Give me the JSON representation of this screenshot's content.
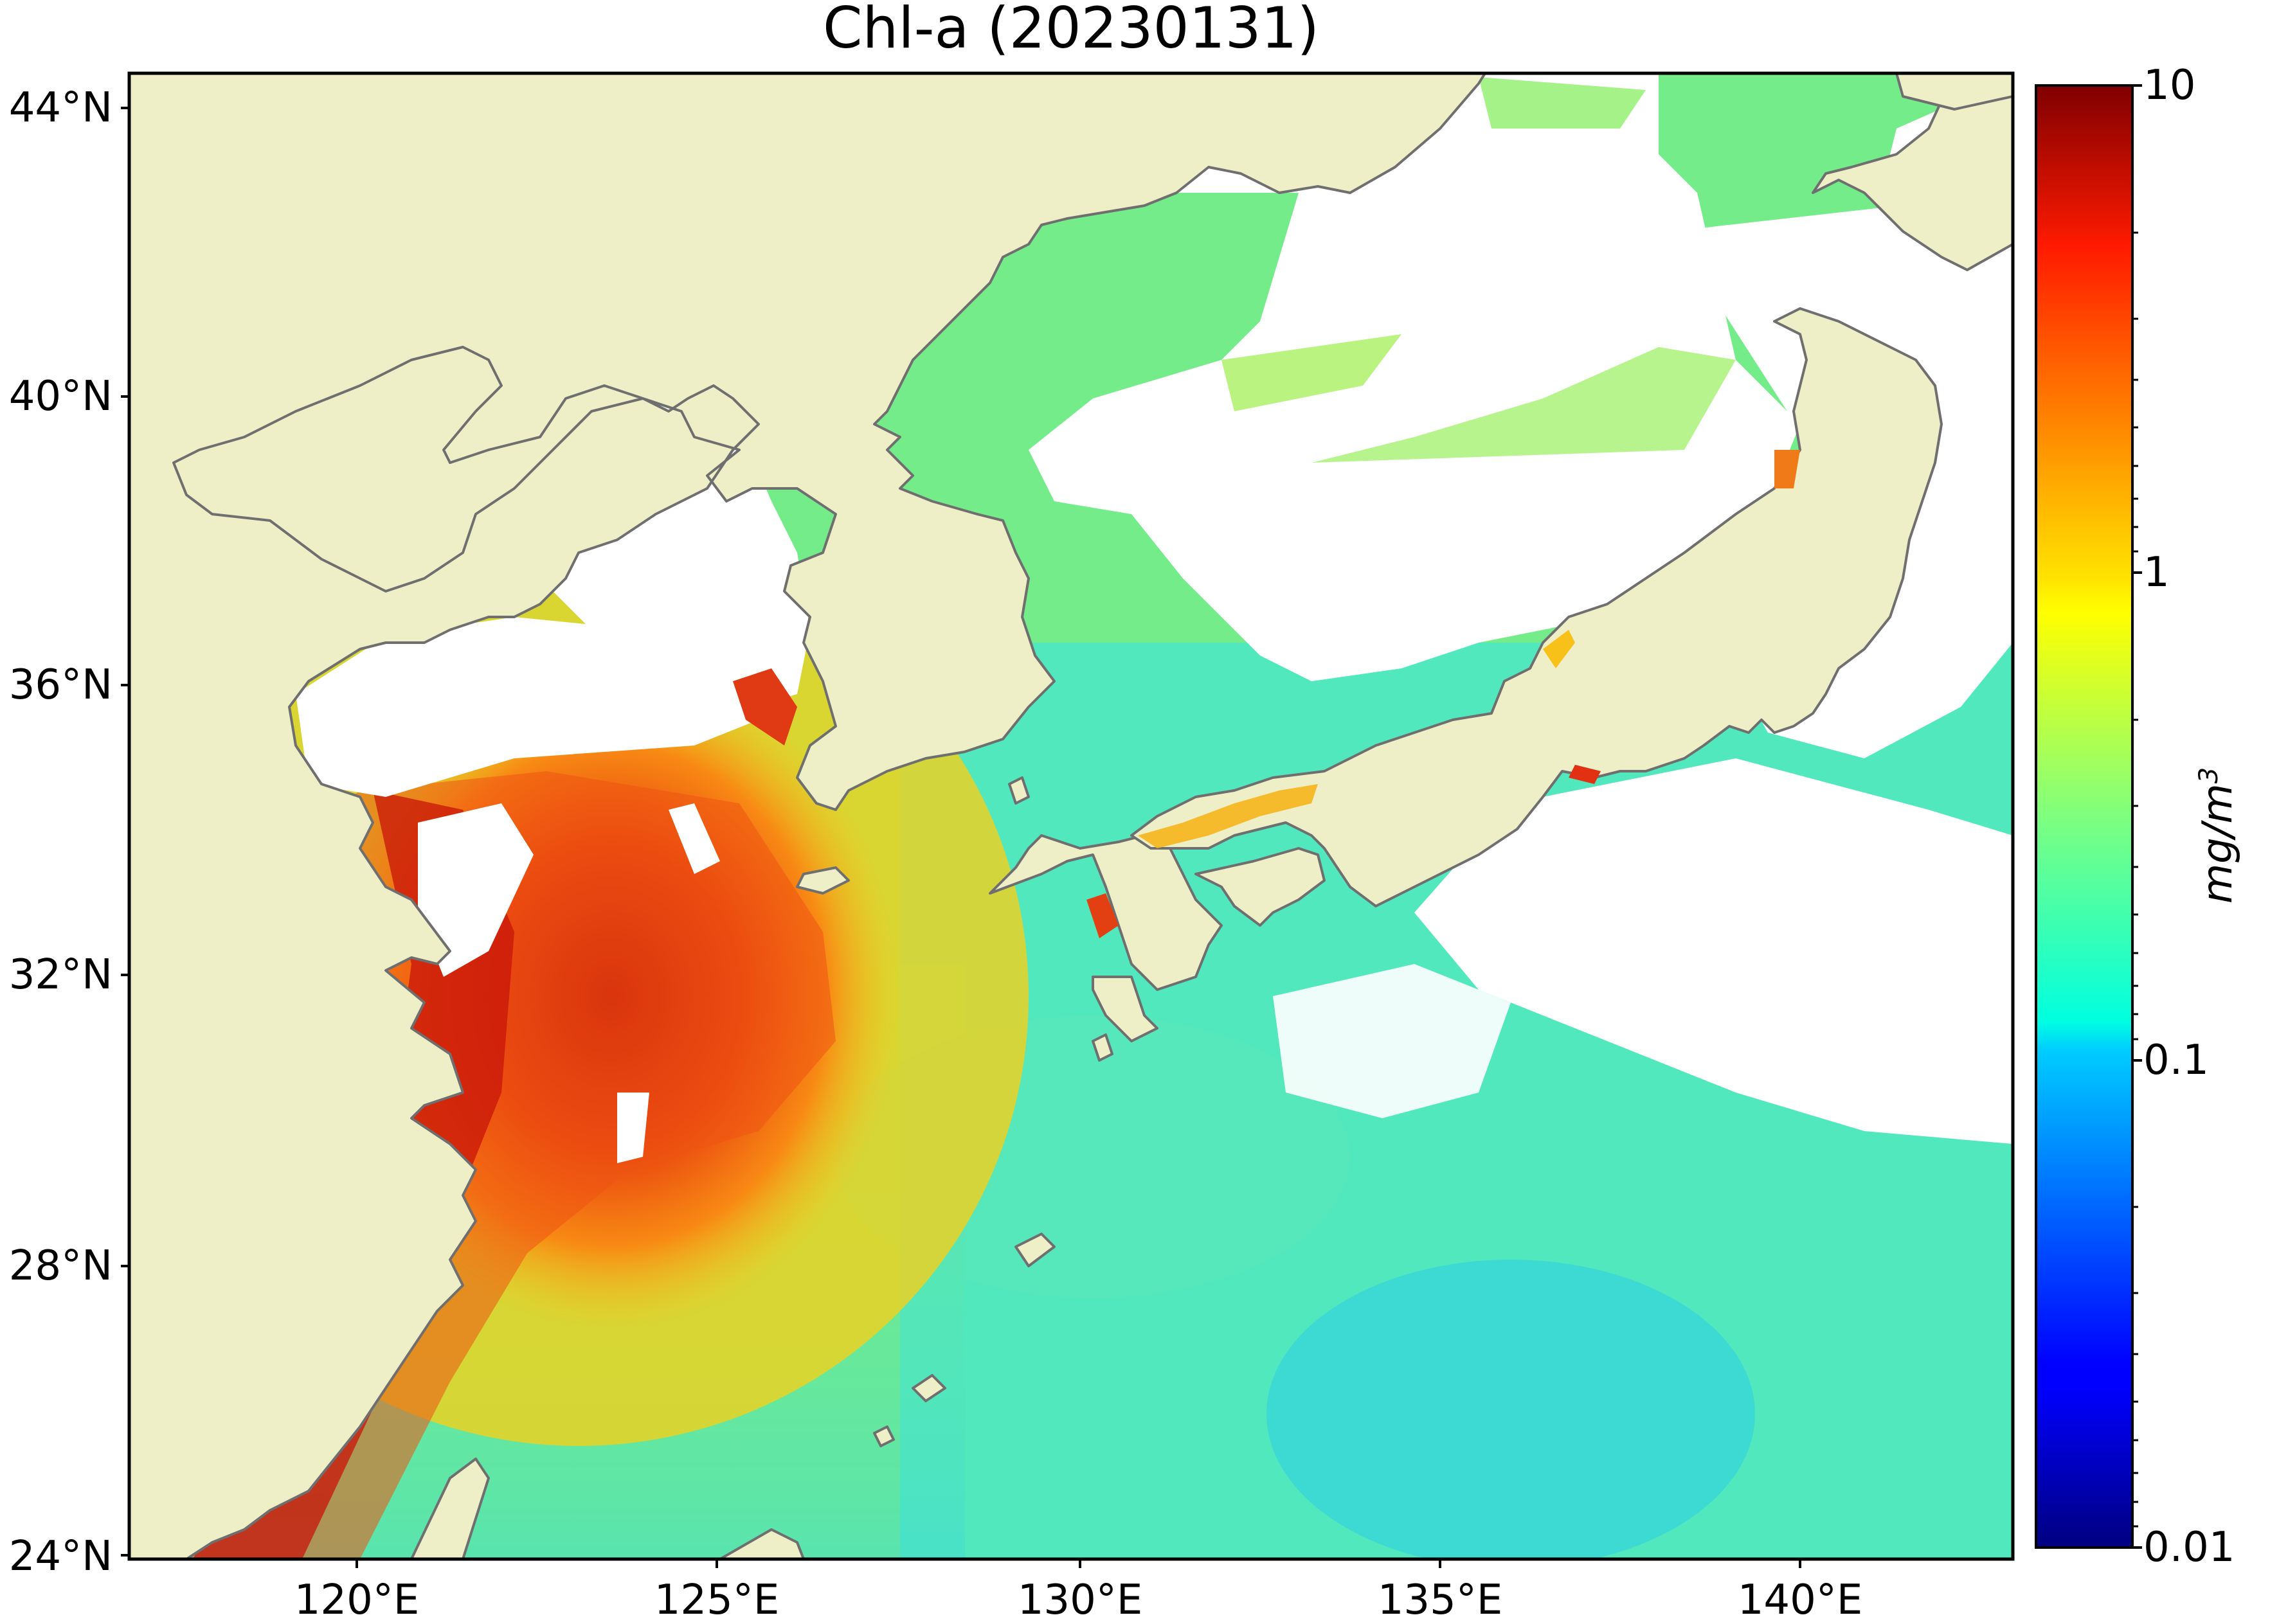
{
  "title": "Chl-a (20230131)",
  "colors": {
    "land": "#efefc7",
    "coast": "#6f6f6f",
    "cloud": "#ffffff",
    "ocean_low": "#4be6c8",
    "ocean_mid": "#8fef6a"
  },
  "map": {
    "lat_ticks": [
      "44°N",
      "40°N",
      "36°N",
      "32°N",
      "28°N",
      "24°N"
    ],
    "lon_ticks": [
      "120°E",
      "125°E",
      "130°E",
      "135°E",
      "140°E"
    ]
  },
  "colorbar": {
    "scale": "log",
    "ticks": [
      "10",
      "1",
      "0.1",
      "0.01"
    ],
    "unit_text": "mg/m",
    "unit_sup": "3",
    "colormap": "jet",
    "range": [
      0.01,
      10
    ]
  }
}
